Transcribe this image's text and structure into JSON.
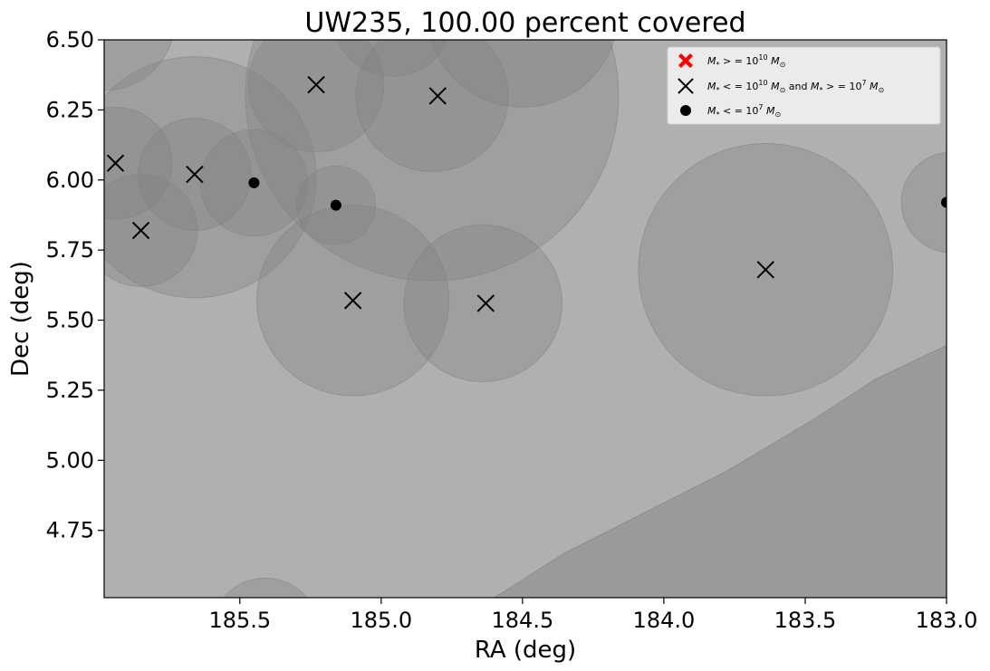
{
  "chart_data": {
    "type": "scatter",
    "title": "UW235, 100.00 percent covered",
    "xlabel": "RA (deg)",
    "ylabel": "Dec (deg)",
    "xlim": [
      185.98,
      183.0
    ],
    "ylim": [
      4.51,
      6.5
    ],
    "x_inverted": true,
    "xticks": [
      185.5,
      185.0,
      184.5,
      184.0,
      183.5,
      183.0
    ],
    "xtick_labels": [
      "185.5",
      "185.0",
      "184.5",
      "184.0",
      "183.5",
      "183.0"
    ],
    "yticks": [
      4.75,
      5.0,
      5.25,
      5.5,
      5.75,
      6.0,
      6.25,
      6.5
    ],
    "ytick_labels": [
      "4.75",
      "5.00",
      "5.25",
      "5.50",
      "5.75",
      "6.00",
      "6.25",
      "6.50"
    ],
    "background_color": "#b0b0b0",
    "circle_color": "#808080",
    "legend_position": "upper right",
    "legend": [
      {
        "marker": "X-filled",
        "color": "#ff0000",
        "text": "M* >= 10^10 M☉",
        "math": {
          "pre": "M",
          "sub": "*",
          "mid": " > = 10",
          "sup": "10",
          "post": "M",
          "post_sub": "⊙",
          "tail": ""
        }
      },
      {
        "marker": "x",
        "color": "#000000",
        "text": "M* <= 10^10 M☉ and M* >= 10^7 M☉",
        "math": {
          "pre": "M",
          "sub": "*",
          "mid": " < = 10",
          "sup": "10",
          "post": "M",
          "post_sub": "⊙",
          "tail": " and M* > = 10^7 M⊙"
        }
      },
      {
        "marker": "dot",
        "color": "#000000",
        "text": "M* <= 10^7 M☉",
        "math": {
          "pre": "M",
          "sub": "*",
          "mid": " < = 10",
          "sup": "7",
          "post": "M",
          "post_sub": "⊙",
          "tail": ""
        }
      }
    ],
    "coverage_circles": [
      {
        "ra": 185.98,
        "dec": 6.57,
        "r": 0.25
      },
      {
        "ra": 185.66,
        "dec": 6.01,
        "r": 0.43
      },
      {
        "ra": 185.94,
        "dec": 6.06,
        "r": 0.2
      },
      {
        "ra": 185.85,
        "dec": 5.82,
        "r": 0.2
      },
      {
        "ra": 185.66,
        "dec": 6.02,
        "r": 0.2
      },
      {
        "ra": 185.45,
        "dec": 5.99,
        "r": 0.19
      },
      {
        "ra": 185.16,
        "dec": 5.91,
        "r": 0.14
      },
      {
        "ra": 185.23,
        "dec": 6.34,
        "r": 0.24
      },
      {
        "ra": 184.82,
        "dec": 6.3,
        "r": 0.66
      },
      {
        "ra": 184.82,
        "dec": 6.3,
        "r": 0.27
      },
      {
        "ra": 184.96,
        "dec": 6.58,
        "r": 0.21
      },
      {
        "ra": 184.5,
        "dec": 6.6,
        "r": 0.34
      },
      {
        "ra": 185.1,
        "dec": 5.57,
        "r": 0.34
      },
      {
        "ra": 184.64,
        "dec": 5.56,
        "r": 0.28
      },
      {
        "ra": 183.64,
        "dec": 5.68,
        "r": 0.45
      },
      {
        "ra": 182.98,
        "dec": 5.92,
        "r": 0.18
      },
      {
        "ra": 185.41,
        "dec": 4.39,
        "r": 0.19
      }
    ],
    "region_polygon": [
      [
        184.6,
        4.51
      ],
      [
        184.35,
        4.67
      ],
      [
        183.78,
        4.96
      ],
      [
        183.48,
        5.14
      ],
      [
        183.25,
        5.29
      ],
      [
        183.0,
        5.41
      ],
      [
        183.0,
        4.51
      ]
    ],
    "series": [
      {
        "name": "M* >= 10^10 M☉",
        "marker": "X-filled",
        "color": "#ff0000",
        "points": []
      },
      {
        "name": "M* <= 10^10 M☉ and M* >= 10^7 M☉",
        "marker": "x",
        "color": "#000000",
        "points": [
          [
            185.94,
            6.06
          ],
          [
            185.85,
            5.82
          ],
          [
            185.66,
            6.02
          ],
          [
            185.23,
            6.34
          ],
          [
            184.8,
            6.3
          ],
          [
            185.1,
            5.57
          ],
          [
            184.63,
            5.56
          ],
          [
            183.64,
            5.68
          ]
        ]
      },
      {
        "name": "M* <= 10^7 M☉",
        "marker": "dot",
        "color": "#000000",
        "points": [
          [
            185.45,
            5.99
          ],
          [
            185.16,
            5.91
          ],
          [
            183.0,
            5.92
          ]
        ]
      }
    ]
  }
}
